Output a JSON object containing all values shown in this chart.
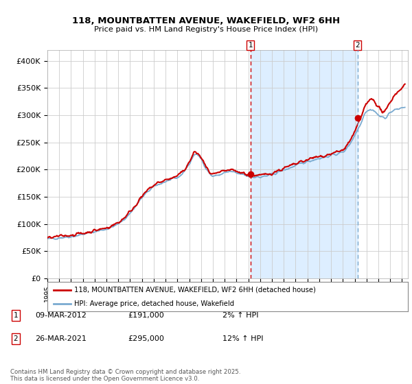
{
  "title1": "118, MOUNTBATTEN AVENUE, WAKEFIELD, WF2 6HH",
  "title2": "Price paid vs. HM Land Registry's House Price Index (HPI)",
  "ylim": [
    0,
    420000
  ],
  "yticks": [
    0,
    50000,
    100000,
    150000,
    200000,
    250000,
    300000,
    350000,
    400000
  ],
  "ytick_labels": [
    "£0",
    "£50K",
    "£100K",
    "£150K",
    "£200K",
    "£250K",
    "£300K",
    "£350K",
    "£400K"
  ],
  "line1_color": "#cc0000",
  "line2_color": "#7aaad0",
  "shade_color": "#ddeeff",
  "marker_color": "#cc0000",
  "vline1_color": "#cc0000",
  "vline2_color": "#7aaad0",
  "grid_color": "#cccccc",
  "background_color": "#ffffff",
  "legend_line1": "118, MOUNTBATTEN AVENUE, WAKEFIELD, WF2 6HH (detached house)",
  "legend_line2": "HPI: Average price, detached house, Wakefield",
  "note1_num": "1",
  "note1_date": "09-MAR-2012",
  "note1_price": "£191,000",
  "note1_hpi": "2% ↑ HPI",
  "note2_num": "2",
  "note2_date": "26-MAR-2021",
  "note2_price": "£295,000",
  "note2_hpi": "12% ↑ HPI",
  "footer": "Contains HM Land Registry data © Crown copyright and database right 2025.\nThis data is licensed under the Open Government Licence v3.0.",
  "point1_x": 2012.19,
  "point1_y": 191000,
  "point2_x": 2021.23,
  "point2_y": 295000,
  "xmin": 1995.0,
  "xmax": 2025.5,
  "hpi_anchors_x": [
    1995.0,
    1996.0,
    1997.0,
    1998.0,
    1999.0,
    2000.0,
    2001.0,
    2002.0,
    2003.0,
    2004.0,
    2005.0,
    2006.0,
    2007.0,
    2007.5,
    2008.0,
    2008.5,
    2009.0,
    2009.5,
    2010.0,
    2010.5,
    2011.0,
    2011.5,
    2012.0,
    2012.5,
    2013.0,
    2013.5,
    2014.0,
    2014.5,
    2015.0,
    2015.5,
    2016.0,
    2016.5,
    2017.0,
    2017.5,
    2018.0,
    2018.5,
    2019.0,
    2019.5,
    2020.0,
    2020.5,
    2021.0,
    2021.5,
    2022.0,
    2022.5,
    2023.0,
    2023.5,
    2024.0,
    2024.5,
    2025.25
  ],
  "hpi_anchors_y": [
    72000,
    75000,
    77000,
    81000,
    86000,
    91000,
    100000,
    120000,
    148000,
    168000,
    178000,
    185000,
    210000,
    228000,
    220000,
    200000,
    188000,
    190000,
    194000,
    196000,
    193000,
    191000,
    188000,
    187000,
    186000,
    188000,
    191000,
    195000,
    199000,
    203000,
    207000,
    211000,
    215000,
    218000,
    221000,
    223000,
    226000,
    229000,
    232000,
    245000,
    263000,
    285000,
    308000,
    310000,
    300000,
    295000,
    305000,
    310000,
    315000
  ],
  "red_anchors_x": [
    1995.0,
    1996.0,
    1997.0,
    1998.0,
    1999.0,
    2000.0,
    2001.0,
    2002.0,
    2003.0,
    2004.0,
    2005.0,
    2006.0,
    2007.0,
    2007.5,
    2008.0,
    2008.5,
    2009.0,
    2009.5,
    2010.0,
    2010.5,
    2011.0,
    2011.5,
    2012.0,
    2012.5,
    2013.0,
    2013.5,
    2014.0,
    2014.5,
    2015.0,
    2015.5,
    2016.0,
    2016.5,
    2017.0,
    2017.5,
    2018.0,
    2018.5,
    2019.0,
    2019.5,
    2020.0,
    2020.5,
    2021.0,
    2021.5,
    2022.0,
    2022.5,
    2023.0,
    2023.5,
    2024.0,
    2024.5,
    2025.25
  ],
  "red_anchors_y": [
    74000,
    77000,
    80000,
    83000,
    88000,
    93000,
    103000,
    123000,
    150000,
    171000,
    181000,
    188000,
    213000,
    232000,
    222000,
    202000,
    191000,
    193000,
    197000,
    199000,
    196000,
    194000,
    191000,
    190000,
    189000,
    191000,
    194000,
    198000,
    202000,
    206000,
    210000,
    214000,
    218000,
    221000,
    224000,
    226000,
    229000,
    232000,
    236000,
    250000,
    268000,
    295000,
    320000,
    330000,
    315000,
    305000,
    325000,
    340000,
    355000
  ]
}
